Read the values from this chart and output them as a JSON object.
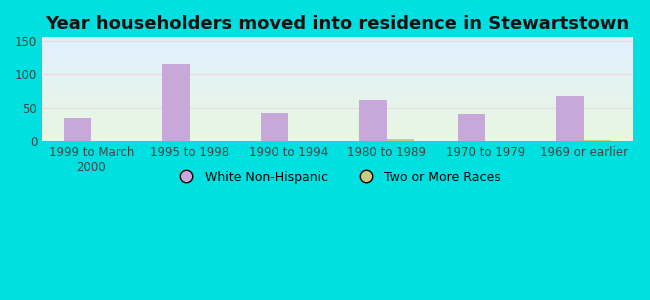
{
  "title": "Year householders moved into residence in Stewartstown",
  "categories": [
    "1999 to March\n2000",
    "1995 to 1998",
    "1990 to 1994",
    "1980 to 1989",
    "1970 to 1979",
    "1969 or earlier"
  ],
  "white_non_hispanic": [
    35,
    115,
    42,
    62,
    41,
    67
  ],
  "two_or_more_races": [
    0,
    0,
    0,
    3,
    0,
    2
  ],
  "bar_color_white": "#c8a8d8",
  "bar_color_two": "#c8cc80",
  "background_outer": "#00e0e0",
  "ylabel_ticks": [
    0,
    50,
    100,
    150
  ],
  "ylim": [
    0,
    155
  ],
  "bar_width": 0.28,
  "legend_white": "White Non-Hispanic",
  "legend_two": "Two or More Races",
  "title_fontsize": 13,
  "tick_fontsize": 8.5,
  "grid_color": "#e8e0e0",
  "bg_top_color": "#ddeeff",
  "bg_bottom_color": "#e8f5e0"
}
